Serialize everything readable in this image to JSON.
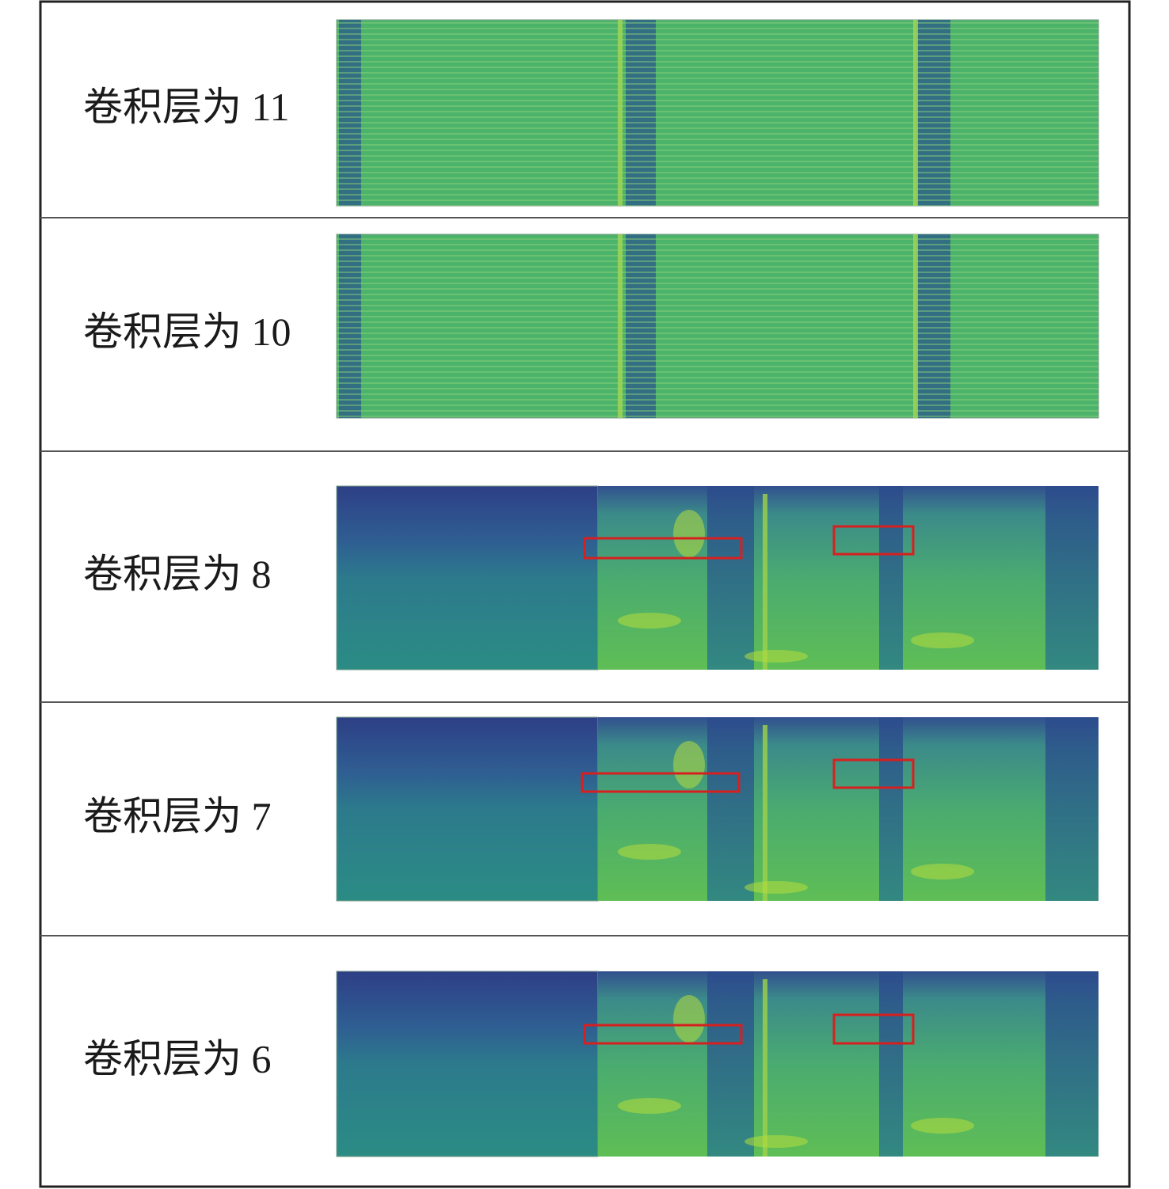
{
  "rows": [
    {
      "label": "卷积层为 11"
    },
    {
      "label": "卷积层为 10"
    },
    {
      "label": "卷积层为 8"
    },
    {
      "label": "卷积层为 7"
    },
    {
      "label": "卷积层为 6"
    }
  ]
}
